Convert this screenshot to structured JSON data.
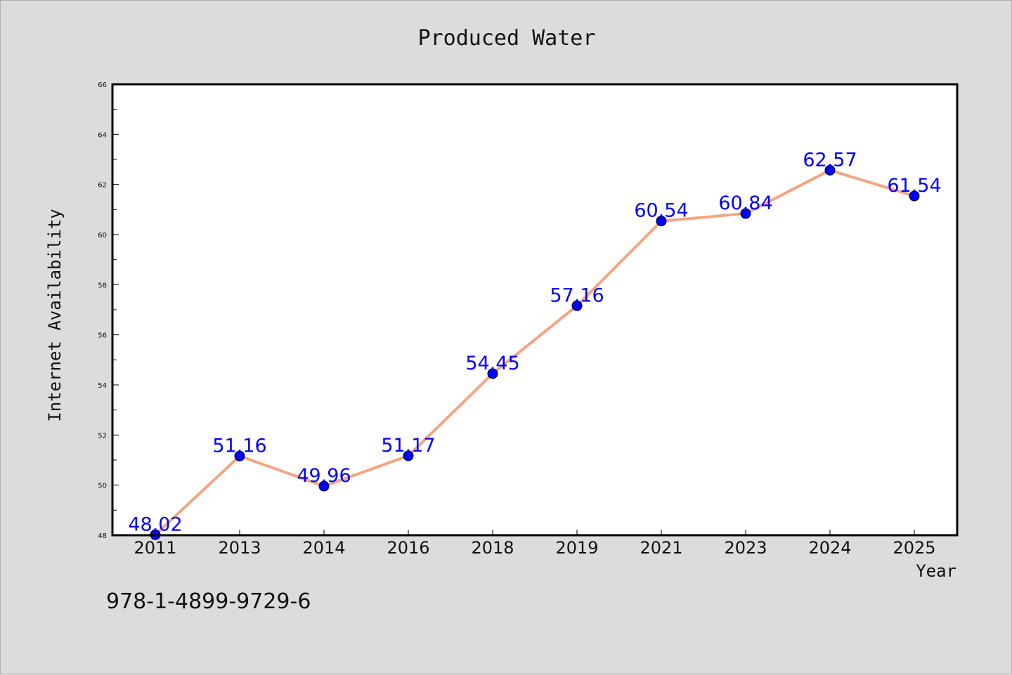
{
  "chart_data": {
    "type": "line",
    "title": "Produced Water",
    "xlabel": "Year",
    "ylabel": "Internet Availability",
    "categories": [
      "2011",
      "2013",
      "2014",
      "2016",
      "2018",
      "2019",
      "2021",
      "2023",
      "2024",
      "2025"
    ],
    "series": [
      {
        "values": [
          48.02,
          51.16,
          49.96,
          51.17,
          54.45,
          57.16,
          60.54,
          60.84,
          62.57,
          61.54
        ]
      }
    ],
    "data_labels": [
      "48.02",
      "51.16",
      "49.96",
      "51.17",
      "54.45",
      "57.16",
      "60.54",
      "60.84",
      "62.57",
      "61.54"
    ],
    "ylim": [
      48,
      66
    ],
    "y_ticks": [
      "48",
      "50",
      "52",
      "54",
      "56",
      "58",
      "60",
      "62",
      "64",
      "66"
    ],
    "grid": false,
    "legend": "none",
    "colors": {
      "line": "#f4a582",
      "marker": "#0000ff",
      "label": "#0000ff",
      "background": "#dcdcdc",
      "plot_background": "#ffffff"
    }
  },
  "footer": {
    "isbn": "978-1-4899-9729-6"
  }
}
